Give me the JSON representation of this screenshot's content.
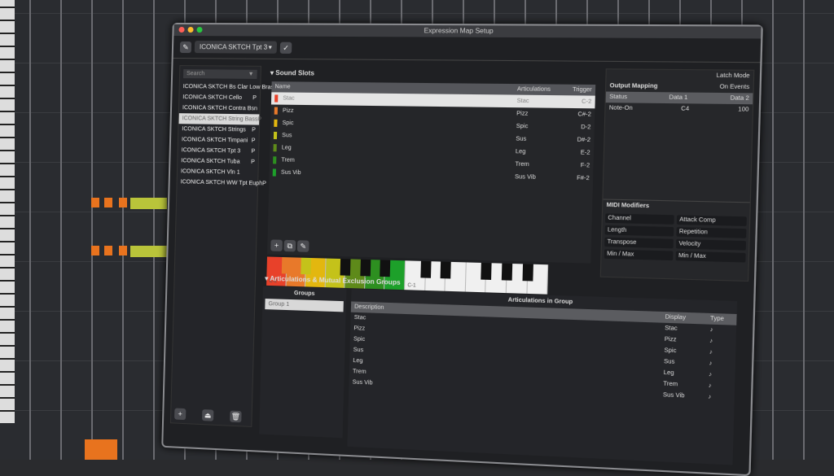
{
  "window": {
    "title": "Expression Map Setup",
    "traffic": [
      "#ff5f57",
      "#febc2e",
      "#28c840"
    ]
  },
  "toolbar": {
    "map_name": "ICONICA SKTCH Tpt 3"
  },
  "left": {
    "search_placeholder": "Search",
    "items": [
      {
        "label": "ICONICA SKTCH Bs Clar Low Bras",
        "flag": "P"
      },
      {
        "label": "ICONICA SKTCH Cello",
        "flag": "P"
      },
      {
        "label": "ICONICA SKTCH Contra Bsn",
        "flag": ""
      },
      {
        "label": "ICONICA SKTCH String Bass",
        "flag": "P",
        "selected": true
      },
      {
        "label": "ICONICA SKTCH Strings",
        "flag": "P"
      },
      {
        "label": "ICONICA SKTCH Timpani",
        "flag": "P"
      },
      {
        "label": "ICONICA SKTCH Tpt 3",
        "flag": "P"
      },
      {
        "label": "ICONICA SKTCH Tuba",
        "flag": "P"
      },
      {
        "label": "ICONICA SKTCH Vln 1",
        "flag": ""
      },
      {
        "label": "ICONICA SKTCH WW Tpt Euph",
        "flag": "P"
      }
    ]
  },
  "sound_slots": {
    "title": "Sound Slots",
    "headers": [
      "Name",
      "Articulations",
      "Trigger"
    ],
    "rows": [
      {
        "name": "Stac",
        "art": "Stac",
        "trigger": "C-2",
        "color": "#e8412a"
      },
      {
        "name": "Pizz",
        "art": "Pizz",
        "trigger": "C#-2",
        "color": "#e8792a"
      },
      {
        "name": "Spic",
        "art": "Spic",
        "trigger": "D-2",
        "color": "#e3b70f"
      },
      {
        "name": "Sus",
        "art": "Sus",
        "trigger": "D#-2",
        "color": "#c4c21a"
      },
      {
        "name": "Leg",
        "art": "Leg",
        "trigger": "E-2",
        "color": "#5e8a1a"
      },
      {
        "name": "Trem",
        "art": "Trem",
        "trigger": "F-2",
        "color": "#2d8f20"
      },
      {
        "name": "Sus Vib",
        "art": "Sus Vib",
        "trigger": "F#-2",
        "color": "#1da02a"
      }
    ],
    "piano_labels": [
      "C-2",
      "C-1"
    ]
  },
  "output": {
    "latch_label": "Latch Mode",
    "title": "Output Mapping",
    "events": "On Events",
    "headers": [
      "Status",
      "Data 1",
      "Data 2"
    ],
    "row": [
      "Note-On",
      "C4",
      "100"
    ],
    "modifiers_title": "MIDI Modifiers",
    "modifiers": [
      "Channel",
      "Attack Comp",
      "Length",
      "Repetition",
      "Transpose",
      "Velocity",
      "Min / Max",
      "Min / Max"
    ]
  },
  "groups": {
    "section": "Articulations & Mutual Exclusion Groups",
    "title": "Groups",
    "items": [
      "Group 1"
    ],
    "art_title": "Articulations in Group",
    "headers": [
      "Description",
      "Display",
      "Type"
    ],
    "rows": [
      "Stac",
      "Pizz",
      "Spic",
      "Sus",
      "Leg",
      "Trem",
      "Sus Vib"
    ]
  }
}
